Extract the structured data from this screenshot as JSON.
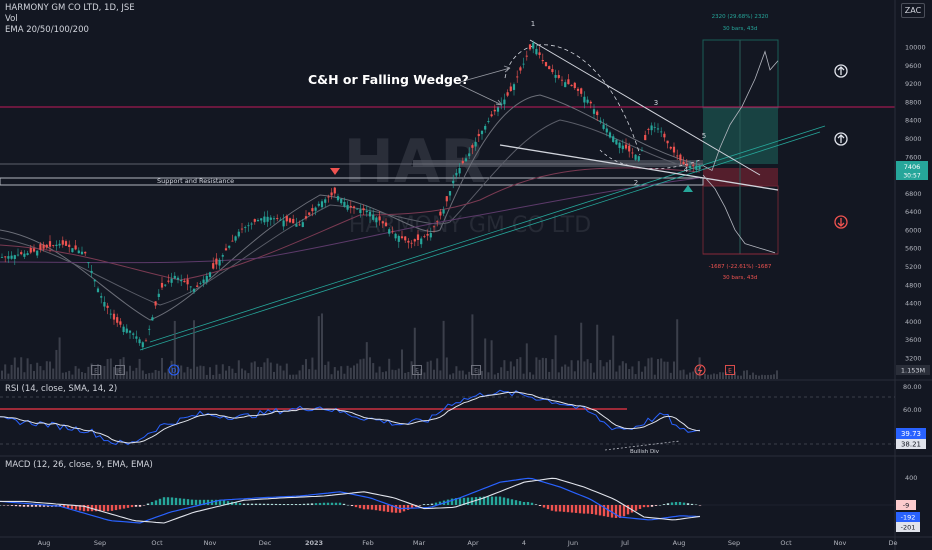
{
  "header": {
    "symbol_line": "HARMONY GM CO LTD, 1D, JSE",
    "vol_label": "Vol",
    "ema_label": "EMA 20/50/100/200",
    "currency_button": "ZAC"
  },
  "watermark": {
    "ticker": "HAR",
    "name": "HARMONY GM CO LTD"
  },
  "annotations": {
    "title": "C&H or Falling Wedge?",
    "support_label": "Support and Resistance",
    "wave_labels": [
      "1",
      "2",
      "3",
      "4",
      "5"
    ],
    "bullish_div": "Bullish Div",
    "long_top_label": "2320 (29.68%) 2320",
    "long_top_sub": "30 bars, 43d",
    "short_bottom_label": "-1687 (-22.61%) -1687",
    "short_bottom_sub": "30 bars, 43d"
  },
  "price_axis": {
    "ticks": [
      "10000",
      "9200",
      "8800",
      "8400",
      "8000",
      "7600",
      "6800",
      "6400",
      "6000",
      "5600",
      "5200",
      "4800",
      "4400",
      "4000",
      "3600",
      "3200"
    ],
    "last_price": "7406",
    "countdown": "30:57",
    "extra": "9600"
  },
  "rsi": {
    "label": "RSI (14, close, SMA, 14, 2)",
    "ticks": [
      "80.00",
      "60.00"
    ],
    "value": "39.73",
    "ma_value": "38.21",
    "volume_badge": "1.153M"
  },
  "macd": {
    "label": "MACD (12, 26, close, 9, EMA, EMA)",
    "ticks": [
      "400",
      "0"
    ],
    "hist_value": "-9",
    "macd_value": "-192",
    "signal_value": "-201"
  },
  "time_axis": [
    "Aug",
    "Sep",
    "Oct",
    "Nov",
    "Dec",
    "2023",
    "Feb",
    "Mar",
    "Apr",
    "4",
    "Jun",
    "Jul",
    "Aug",
    "Sep",
    "Oct",
    "Nov",
    "De"
  ],
  "event_markers": [
    "E",
    "E",
    "D",
    "E",
    "E",
    "E"
  ],
  "chart_data": {
    "type": "candlestick",
    "title": "HARMONY GM CO LTD, 1D, JSE",
    "price_ticks": [
      3200,
      3600,
      4000,
      4400,
      4800,
      5200,
      5600,
      6000,
      6400,
      6800,
      7600,
      8000,
      8400,
      8800,
      9200,
      9600,
      10000
    ],
    "price_series_approx": {
      "dates": [
        "Aug",
        "Sep",
        "Oct",
        "Nov",
        "Dec",
        "2023",
        "Feb",
        "Mar",
        "Apr",
        "4",
        "Jun",
        "Jul",
        "Aug"
      ],
      "close": [
        5600,
        4300,
        3700,
        5100,
        6200,
        6300,
        6500,
        5800,
        8200,
        9800,
        8400,
        7900,
        7406
      ]
    },
    "last_close": 7406,
    "support_level": 6850,
    "resistance_level": 8700,
    "long_position": {
      "gain": 2320,
      "gain_pct": 29.68,
      "bars": 30,
      "days": 43
    },
    "short_position": {
      "loss": -1687,
      "loss_pct": -22.61,
      "bars": 30,
      "days": 43
    },
    "rsi_levels": [
      80,
      60
    ],
    "rsi_last": 39.73,
    "rsi_ma_last": 38.21,
    "macd_last": -192,
    "signal_last": -201,
    "hist_last": -9,
    "volume_last": "1.153M"
  }
}
